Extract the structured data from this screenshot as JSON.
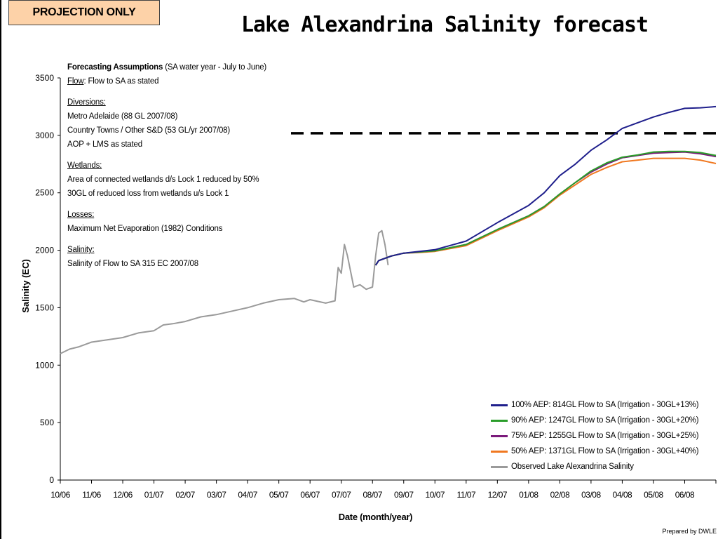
{
  "badge": "PROJECTION ONLY",
  "title": "Lake Alexandrina Salinity forecast",
  "credit": "Prepared by DWLE",
  "assumptions": {
    "title": "Forecasting Assumptions",
    "title_suffix": " (SA water year - July to June)",
    "flow_label": "Flow",
    "flow_text": ": Flow to SA as stated",
    "diversions_heading": "Diversions:",
    "diversions": [
      "Metro Adelaide (88 GL 2007/08)",
      "Country Towns / Other S&D (53 GL/yr 2007/08)",
      "AOP + LMS as stated"
    ],
    "wetlands_heading": "Wetlands:",
    "wetlands": [
      "Area of connected wetlands d/s Lock 1 reduced by 50%",
      "30GL of reduced loss from wetlands u/s Lock 1"
    ],
    "losses_heading": "Losses:",
    "losses": [
      "Maximum Net Evaporation (1982) Conditions"
    ],
    "salinity_heading": "Salinity:",
    "salinity": [
      "Salinity of Flow to SA 315 EC 2007/08"
    ]
  },
  "chart_data": {
    "type": "line",
    "xlabel": "Date (month/year)",
    "ylabel": "Salinity (EC)",
    "ylim": [
      0,
      3500
    ],
    "yticks": [
      0,
      500,
      1000,
      1500,
      2000,
      2500,
      3000,
      3500
    ],
    "xticks": [
      "10/06",
      "11/06",
      "12/06",
      "01/07",
      "02/07",
      "03/07",
      "04/07",
      "05/07",
      "06/07",
      "07/07",
      "08/07",
      "09/07",
      "10/07",
      "11/07",
      "12/07",
      "01/08",
      "02/08",
      "03/08",
      "04/08",
      "05/08",
      "06/08"
    ],
    "threshold": 3000,
    "series": [
      {
        "name": "100% AEP: 814GL Flow to SA (Irrigation - 30GL+13%)",
        "color": "#1f1f8c",
        "points": [
          [
            10.1,
            1870
          ],
          [
            10.2,
            1910
          ],
          [
            10.6,
            1950
          ],
          [
            11,
            1975
          ],
          [
            11.5,
            1990
          ],
          [
            12,
            2005
          ],
          [
            13,
            2080
          ],
          [
            14,
            2240
          ],
          [
            15,
            2390
          ],
          [
            15.5,
            2500
          ],
          [
            16,
            2650
          ],
          [
            16.5,
            2750
          ],
          [
            17,
            2870
          ],
          [
            17.5,
            2960
          ],
          [
            18,
            3060
          ],
          [
            18.5,
            3110
          ],
          [
            19,
            3160
          ],
          [
            19.5,
            3200
          ],
          [
            20,
            3235
          ],
          [
            20.5,
            3240
          ],
          [
            21,
            3250
          ]
        ]
      },
      {
        "name": "90% AEP: 1247GL Flow to SA (Irrigation - 30GL+20%)",
        "color": "#2a9d2a",
        "points": [
          [
            10.1,
            1870
          ],
          [
            10.2,
            1910
          ],
          [
            10.6,
            1950
          ],
          [
            11,
            1975
          ],
          [
            11.5,
            1985
          ],
          [
            12,
            1995
          ],
          [
            13,
            2050
          ],
          [
            14,
            2180
          ],
          [
            15,
            2300
          ],
          [
            15.5,
            2380
          ],
          [
            16,
            2490
          ],
          [
            16.5,
            2590
          ],
          [
            17,
            2690
          ],
          [
            17.5,
            2760
          ],
          [
            18,
            2810
          ],
          [
            18.5,
            2830
          ],
          [
            19,
            2855
          ],
          [
            19.5,
            2860
          ],
          [
            20,
            2860
          ],
          [
            20.5,
            2850
          ],
          [
            21,
            2825
          ]
        ]
      },
      {
        "name": "75% AEP: 1255GL Flow to SA (Irrigation - 30GL+25%)",
        "color": "#7b1a7b",
        "points": [
          [
            10.1,
            1870
          ],
          [
            10.2,
            1910
          ],
          [
            10.6,
            1950
          ],
          [
            11,
            1975
          ],
          [
            11.5,
            1985
          ],
          [
            12,
            1995
          ],
          [
            13,
            2050
          ],
          [
            14,
            2180
          ],
          [
            15,
            2300
          ],
          [
            15.5,
            2380
          ],
          [
            16,
            2490
          ],
          [
            16.5,
            2590
          ],
          [
            17,
            2680
          ],
          [
            17.5,
            2750
          ],
          [
            18,
            2805
          ],
          [
            18.5,
            2825
          ],
          [
            19,
            2845
          ],
          [
            19.5,
            2850
          ],
          [
            20,
            2855
          ],
          [
            20.5,
            2840
          ],
          [
            21,
            2815
          ]
        ]
      },
      {
        "name": "50% AEP: 1371GL Flow to SA (Irrigation - 30GL+40%)",
        "color": "#f07820",
        "points": [
          [
            10.1,
            1870
          ],
          [
            10.2,
            1910
          ],
          [
            10.6,
            1950
          ],
          [
            11,
            1975
          ],
          [
            11.5,
            1980
          ],
          [
            12,
            1990
          ],
          [
            13,
            2040
          ],
          [
            14,
            2170
          ],
          [
            15,
            2290
          ],
          [
            15.5,
            2370
          ],
          [
            16,
            2480
          ],
          [
            16.5,
            2570
          ],
          [
            17,
            2660
          ],
          [
            17.5,
            2720
          ],
          [
            18,
            2770
          ],
          [
            18.5,
            2785
          ],
          [
            19,
            2800
          ],
          [
            19.5,
            2800
          ],
          [
            20,
            2800
          ],
          [
            20.5,
            2785
          ],
          [
            21,
            2755
          ]
        ]
      },
      {
        "name": "Observed Lake Alexandrina Salinity",
        "color": "#9a9a9a",
        "points": [
          [
            0,
            1100
          ],
          [
            0.3,
            1140
          ],
          [
            0.6,
            1160
          ],
          [
            1,
            1200
          ],
          [
            1.5,
            1220
          ],
          [
            2,
            1240
          ],
          [
            2.5,
            1280
          ],
          [
            3,
            1300
          ],
          [
            3.3,
            1350
          ],
          [
            3.6,
            1360
          ],
          [
            4,
            1380
          ],
          [
            4.5,
            1420
          ],
          [
            5,
            1440
          ],
          [
            5.5,
            1470
          ],
          [
            6,
            1500
          ],
          [
            6.5,
            1540
          ],
          [
            7,
            1570
          ],
          [
            7.5,
            1580
          ],
          [
            7.8,
            1550
          ],
          [
            8,
            1570
          ],
          [
            8.5,
            1540
          ],
          [
            8.8,
            1560
          ],
          [
            8.9,
            1850
          ],
          [
            9,
            1800
          ],
          [
            9.1,
            2050
          ],
          [
            9.2,
            1950
          ],
          [
            9.4,
            1680
          ],
          [
            9.6,
            1700
          ],
          [
            9.8,
            1660
          ],
          [
            10,
            1680
          ],
          [
            10.1,
            1950
          ],
          [
            10.2,
            2150
          ],
          [
            10.3,
            2170
          ],
          [
            10.4,
            2050
          ],
          [
            10.5,
            1870
          ]
        ]
      }
    ]
  }
}
